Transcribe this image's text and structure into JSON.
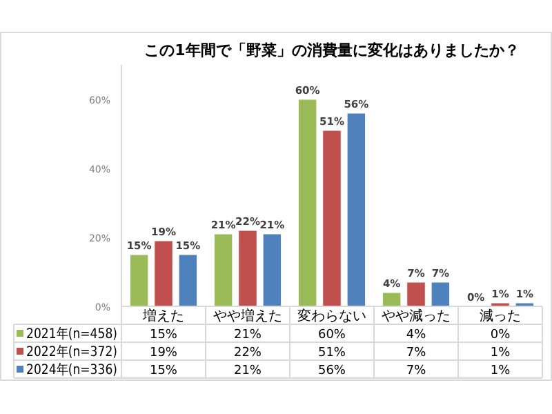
{
  "chart_data": {
    "type": "bar",
    "title": "この1年間で「野菜」の消費量に変化はありましたか？",
    "categories": [
      "増えた",
      "やや増えた",
      "変わらない",
      "やや減った",
      "減った"
    ],
    "series": [
      {
        "name": "2021年(n=458)",
        "color": "#9bbb59",
        "values": [
          15,
          21,
          60,
          4,
          0
        ],
        "value_labels": [
          "15%",
          "21%",
          "60%",
          "4%",
          "0%"
        ]
      },
      {
        "name": "2022年(n=372)",
        "color": "#c0504d",
        "values": [
          19,
          22,
          51,
          7,
          1
        ],
        "value_labels": [
          "19%",
          "22%",
          "51%",
          "7%",
          "1%"
        ]
      },
      {
        "name": "2024年(n=336)",
        "color": "#4f81bd",
        "values": [
          15,
          21,
          56,
          7,
          1
        ],
        "value_labels": [
          "15%",
          "21%",
          "56%",
          "7%",
          "1%"
        ]
      }
    ],
    "ylim": [
      0,
      70
    ],
    "yticks": [
      {
        "value": 0,
        "label": "0%"
      },
      {
        "value": 20,
        "label": "20%"
      },
      {
        "value": 40,
        "label": "40%"
      },
      {
        "value": 60,
        "label": "60%"
      }
    ],
    "grid": false,
    "legend": "bottom"
  }
}
